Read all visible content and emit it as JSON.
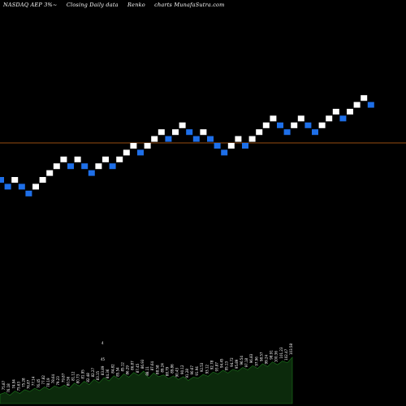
{
  "header": {
    "symbol_text": "NASDAQ AEP 3%~",
    "desc_text": "Closing Daily data",
    "type_text": "Renko",
    "site_text": "charts MunafaSutra.com"
  },
  "colors": {
    "background": "#000000",
    "up_brick": "#ffffff",
    "down_brick": "#1e6fe8",
    "reference_line": "#c86414",
    "volume_fill": "#0c2a0c",
    "volume_line": "#1d7a1d",
    "volume_label": "#ffffff"
  },
  "chart_data": {
    "type": "renko",
    "bricks": [
      {
        "level": 13,
        "dir": "down"
      },
      {
        "level": 12,
        "dir": "down"
      },
      {
        "level": 13,
        "dir": "up"
      },
      {
        "level": 12,
        "dir": "down"
      },
      {
        "level": 11,
        "dir": "down"
      },
      {
        "level": 12,
        "dir": "up"
      },
      {
        "level": 13,
        "dir": "up"
      },
      {
        "level": 14,
        "dir": "up"
      },
      {
        "level": 15,
        "dir": "up"
      },
      {
        "level": 16,
        "dir": "up"
      },
      {
        "level": 15,
        "dir": "down"
      },
      {
        "level": 16,
        "dir": "up"
      },
      {
        "level": 15,
        "dir": "down"
      },
      {
        "level": 14,
        "dir": "down"
      },
      {
        "level": 15,
        "dir": "up"
      },
      {
        "level": 16,
        "dir": "up"
      },
      {
        "level": 15,
        "dir": "down"
      },
      {
        "level": 16,
        "dir": "up"
      },
      {
        "level": 17,
        "dir": "up"
      },
      {
        "level": 18,
        "dir": "up"
      },
      {
        "level": 17,
        "dir": "down"
      },
      {
        "level": 18,
        "dir": "up"
      },
      {
        "level": 19,
        "dir": "up"
      },
      {
        "level": 20,
        "dir": "up"
      },
      {
        "level": 19,
        "dir": "down"
      },
      {
        "level": 20,
        "dir": "up"
      },
      {
        "level": 21,
        "dir": "up"
      },
      {
        "level": 20,
        "dir": "down"
      },
      {
        "level": 19,
        "dir": "down"
      },
      {
        "level": 20,
        "dir": "up"
      },
      {
        "level": 19,
        "dir": "down"
      },
      {
        "level": 18,
        "dir": "down"
      },
      {
        "level": 17,
        "dir": "down"
      },
      {
        "level": 18,
        "dir": "up"
      },
      {
        "level": 19,
        "dir": "up"
      },
      {
        "level": 18,
        "dir": "down"
      },
      {
        "level": 19,
        "dir": "up"
      },
      {
        "level": 20,
        "dir": "up"
      },
      {
        "level": 21,
        "dir": "up"
      },
      {
        "level": 22,
        "dir": "up"
      },
      {
        "level": 21,
        "dir": "down"
      },
      {
        "level": 20,
        "dir": "down"
      },
      {
        "level": 21,
        "dir": "up"
      },
      {
        "level": 22,
        "dir": "up"
      },
      {
        "level": 21,
        "dir": "down"
      },
      {
        "level": 20,
        "dir": "down"
      },
      {
        "level": 21,
        "dir": "up"
      },
      {
        "level": 22,
        "dir": "up"
      },
      {
        "level": 23,
        "dir": "up"
      },
      {
        "level": 22,
        "dir": "down"
      },
      {
        "level": 23,
        "dir": "up"
      },
      {
        "level": 24,
        "dir": "up"
      },
      {
        "level": 25,
        "dir": "up"
      },
      {
        "level": 24,
        "dir": "down"
      }
    ],
    "reference_level": 18.5,
    "volume": [
      0.2,
      0.24,
      0.18,
      0.27,
      0.22,
      0.3,
      0.26,
      0.33,
      0.28,
      0.36,
      0.3,
      0.38,
      0.34,
      0.4,
      0.33,
      0.44,
      0.38,
      0.48,
      0.41,
      0.52,
      0.45,
      0.56,
      0.49,
      0.6,
      0.53,
      0.64,
      0.57,
      0.67,
      0.61,
      0.7,
      0.55,
      0.66,
      0.58,
      0.62,
      0.54,
      0.6,
      0.52,
      0.58,
      0.5,
      0.57,
      0.55,
      0.63,
      0.59,
      0.68,
      0.64,
      0.72,
      0.66,
      0.74,
      0.7,
      0.78,
      0.73,
      0.82,
      0.76,
      0.86,
      0.8,
      0.9,
      0.84,
      0.92,
      0.88,
      1.0
    ],
    "volume_labels": [
      "76.51",
      "75.87",
      "76.18",
      "74.94",
      "75.63",
      "75.28",
      "76.87",
      "77.14",
      "76.45",
      "77.82",
      "78.19",
      "78.64",
      "79.23",
      "79.87",
      "80.56",
      "81.12",
      "80.73",
      "81.95",
      "82.48",
      "82.27",
      "83.15",
      "83.89",
      "84.36",
      "84.82",
      "85.54",
      "85.12",
      "86.29",
      "86.87",
      "87.45",
      "86.93",
      "88.11",
      "87.64",
      "88.58",
      "89.24",
      "88.79",
      "89.86",
      "90.43",
      "90.12",
      "91.28",
      "90.67",
      "91.94",
      "92.53",
      "93.12",
      "92.78",
      "93.87",
      "94.45",
      "95.13",
      "94.72",
      "95.89",
      "96.54",
      "97.18",
      "96.83",
      "97.96",
      "98.57",
      "99.24",
      "98.91",
      "100.36",
      "101.23",
      "102.47",
      "103.58"
    ],
    "volume_labels_extra": [
      "4",
      "45"
    ]
  }
}
